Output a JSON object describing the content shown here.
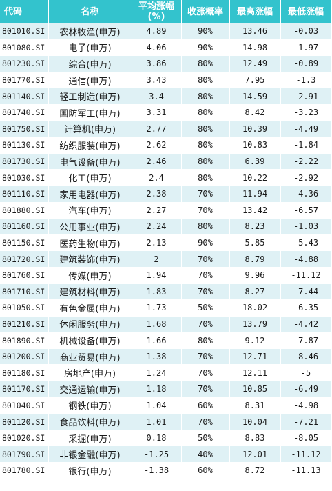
{
  "headers": {
    "code": "代码",
    "name": "名称",
    "avg_line1": "平均涨幅",
    "avg_line2": "(%)",
    "prob": "收涨概率",
    "max": "最高涨幅",
    "min": "最低涨幅"
  },
  "rows": [
    {
      "code": "801010.SI",
      "name": "农林牧渔(申万)",
      "avg": "4.89",
      "prob": "90%",
      "max": "13.46",
      "min": "-0.03"
    },
    {
      "code": "801080.SI",
      "name": "电子(申万)",
      "avg": "4.06",
      "prob": "90%",
      "max": "14.98",
      "min": "-1.97"
    },
    {
      "code": "801230.SI",
      "name": "综合(申万)",
      "avg": "3.86",
      "prob": "80%",
      "max": "12.49",
      "min": "-0.89"
    },
    {
      "code": "801770.SI",
      "name": "通信(申万)",
      "avg": "3.43",
      "prob": "80%",
      "max": "7.95",
      "min": "-1.3"
    },
    {
      "code": "801140.SI",
      "name": "轻工制造(申万)",
      "avg": "3.4",
      "prob": "80%",
      "max": "14.59",
      "min": "-2.91"
    },
    {
      "code": "801740.SI",
      "name": "国防军工(申万)",
      "avg": "3.31",
      "prob": "80%",
      "max": "8.42",
      "min": "-3.23"
    },
    {
      "code": "801750.SI",
      "name": "计算机(申万)",
      "avg": "2.77",
      "prob": "80%",
      "max": "10.39",
      "min": "-4.49"
    },
    {
      "code": "801130.SI",
      "name": "纺织服装(申万)",
      "avg": "2.62",
      "prob": "80%",
      "max": "10.83",
      "min": "-1.84"
    },
    {
      "code": "801730.SI",
      "name": "电气设备(申万)",
      "avg": "2.46",
      "prob": "80%",
      "max": "6.39",
      "min": "-2.22"
    },
    {
      "code": "801030.SI",
      "name": "化工(申万)",
      "avg": "2.4",
      "prob": "80%",
      "max": "10.22",
      "min": "-2.92"
    },
    {
      "code": "801110.SI",
      "name": "家用电器(申万)",
      "avg": "2.38",
      "prob": "70%",
      "max": "11.94",
      "min": "-4.36"
    },
    {
      "code": "801880.SI",
      "name": "汽车(申万)",
      "avg": "2.27",
      "prob": "70%",
      "max": "13.42",
      "min": "-6.57"
    },
    {
      "code": "801160.SI",
      "name": "公用事业(申万)",
      "avg": "2.24",
      "prob": "80%",
      "max": "8.23",
      "min": "-1.03"
    },
    {
      "code": "801150.SI",
      "name": "医药生物(申万)",
      "avg": "2.13",
      "prob": "90%",
      "max": "5.85",
      "min": "-5.43"
    },
    {
      "code": "801720.SI",
      "name": "建筑装饰(申万)",
      "avg": "2",
      "prob": "70%",
      "max": "8.79",
      "min": "-4.88"
    },
    {
      "code": "801760.SI",
      "name": "传媒(申万)",
      "avg": "1.94",
      "prob": "70%",
      "max": "9.96",
      "min": "-11.12"
    },
    {
      "code": "801710.SI",
      "name": "建筑材料(申万)",
      "avg": "1.83",
      "prob": "70%",
      "max": "8.27",
      "min": "-7.44"
    },
    {
      "code": "801050.SI",
      "name": "有色金属(申万)",
      "avg": "1.73",
      "prob": "50%",
      "max": "18.02",
      "min": "-6.35"
    },
    {
      "code": "801210.SI",
      "name": "休闲服务(申万)",
      "avg": "1.68",
      "prob": "70%",
      "max": "13.79",
      "min": "-4.42"
    },
    {
      "code": "801890.SI",
      "name": "机械设备(申万)",
      "avg": "1.66",
      "prob": "80%",
      "max": "9.12",
      "min": "-7.87"
    },
    {
      "code": "801200.SI",
      "name": "商业贸易(申万)",
      "avg": "1.38",
      "prob": "70%",
      "max": "12.71",
      "min": "-8.46"
    },
    {
      "code": "801180.SI",
      "name": "房地产(申万)",
      "avg": "1.24",
      "prob": "70%",
      "max": "12.11",
      "min": "-5"
    },
    {
      "code": "801170.SI",
      "name": "交通运输(申万)",
      "avg": "1.18",
      "prob": "70%",
      "max": "10.85",
      "min": "-6.49"
    },
    {
      "code": "801040.SI",
      "name": "钢铁(申万)",
      "avg": "1.04",
      "prob": "60%",
      "max": "8.31",
      "min": "-4.98"
    },
    {
      "code": "801120.SI",
      "name": "食品饮料(申万)",
      "avg": "1.01",
      "prob": "70%",
      "max": "10.04",
      "min": "-7.21"
    },
    {
      "code": "801020.SI",
      "name": "采掘(申万)",
      "avg": "0.18",
      "prob": "50%",
      "max": "8.83",
      "min": "-8.05"
    },
    {
      "code": "801790.SI",
      "name": "非银金融(申万)",
      "avg": "-1.25",
      "prob": "40%",
      "max": "12.01",
      "min": "-11.12"
    },
    {
      "code": "801780.SI",
      "name": "银行(申万)",
      "avg": "-1.38",
      "prob": "60%",
      "max": "8.72",
      "min": "-11.13"
    }
  ],
  "colors": {
    "header_bg": "#33c3cd",
    "header_text": "#ffffff",
    "row_band": "#dff1f5",
    "row_plain": "#ffffff"
  }
}
